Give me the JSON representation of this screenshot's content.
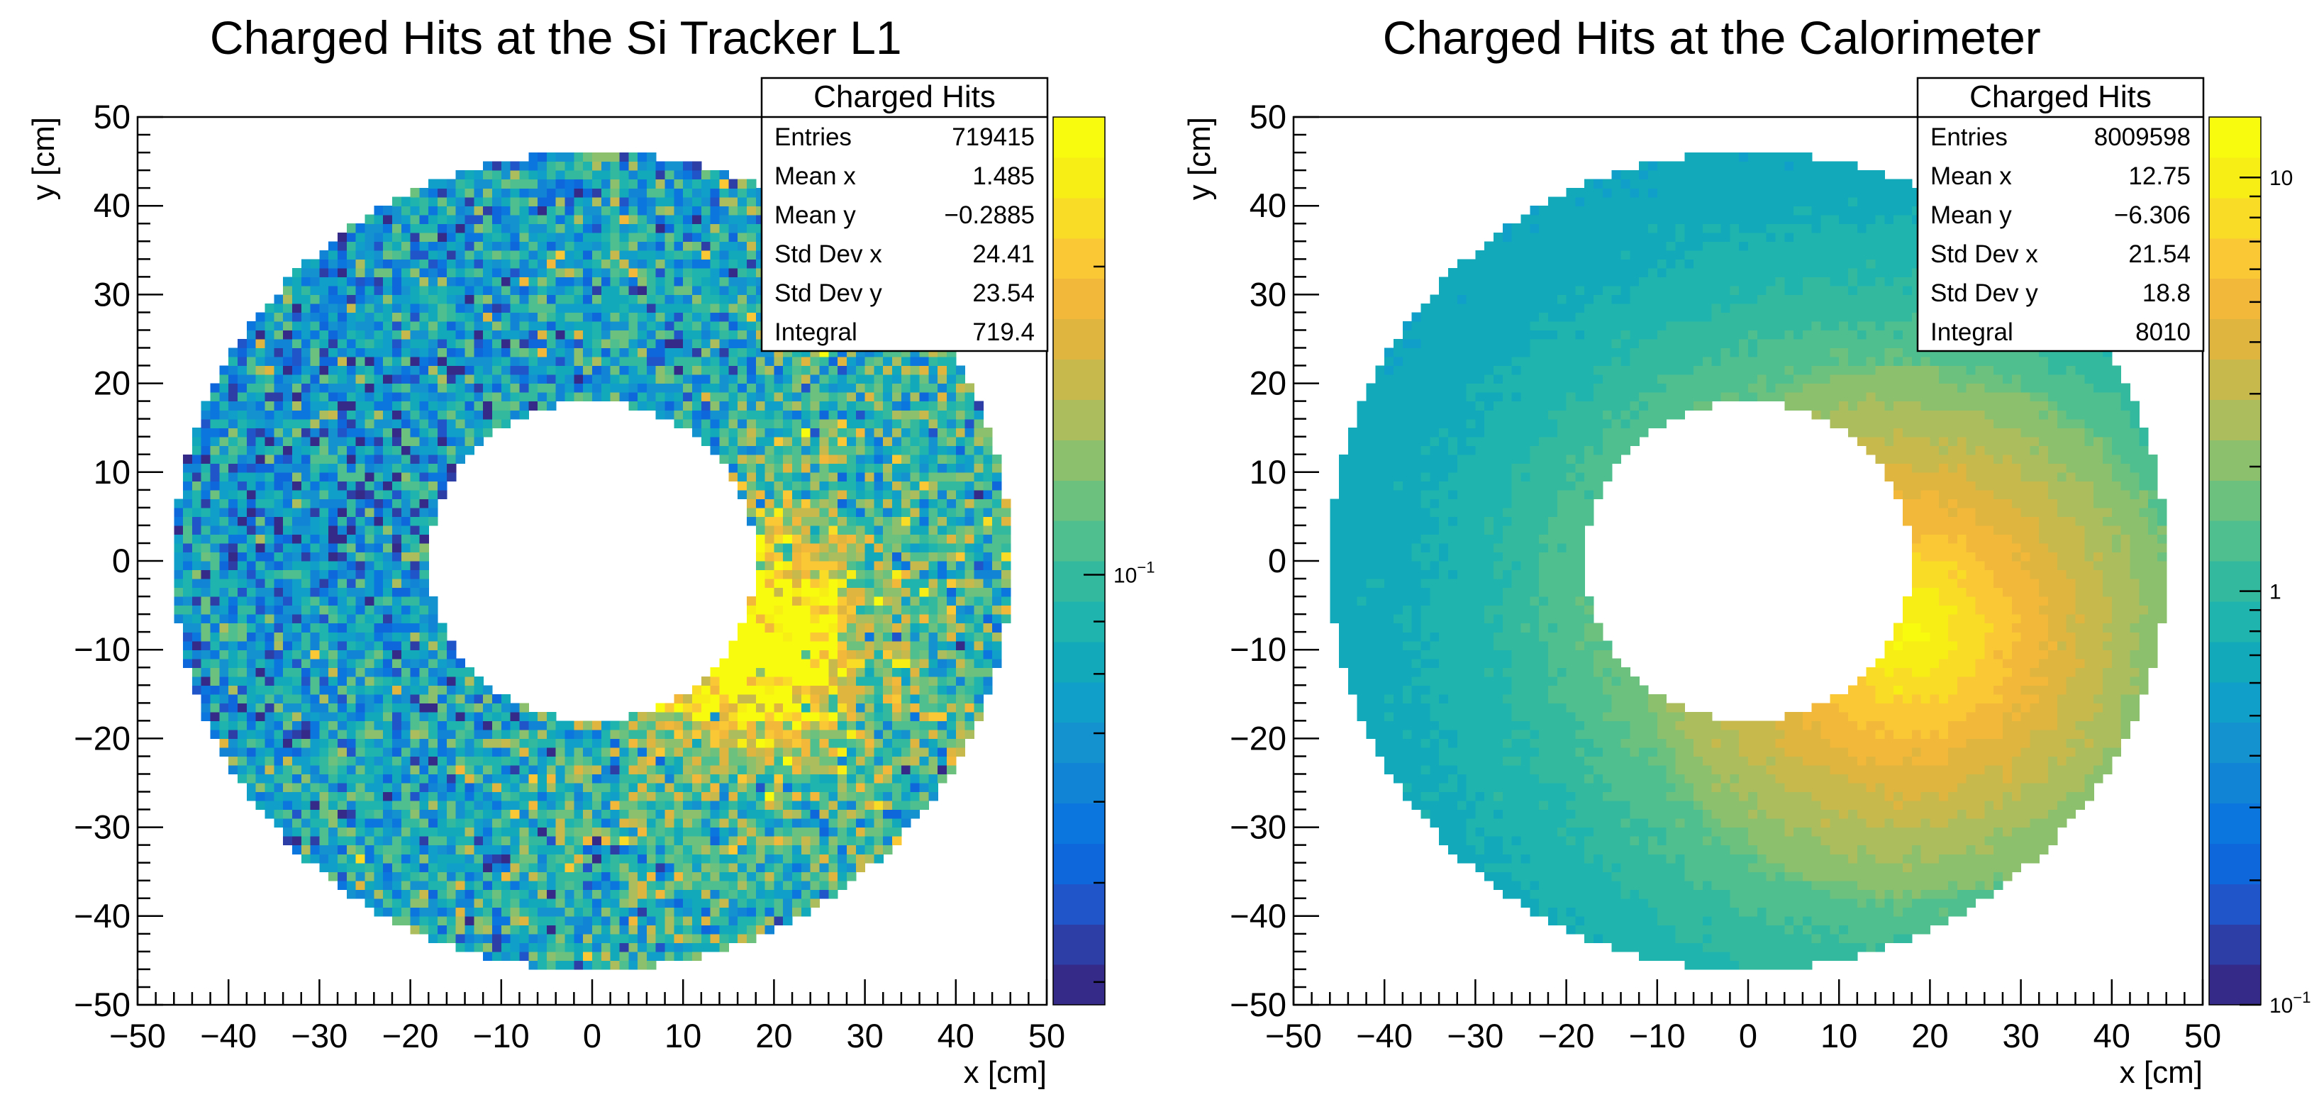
{
  "chart_data": [
    {
      "type": "heatmap",
      "title": "Charged Hits at the Si Tracker L1",
      "xlabel": "x [cm]",
      "ylabel": "y [cm]",
      "xlim": [
        -50,
        50
      ],
      "ylim": [
        -50,
        50
      ],
      "x_ticks": [
        "−50",
        "−40",
        "−30",
        "−20",
        "−10",
        "0",
        "10",
        "20",
        "30",
        "40",
        "50"
      ],
      "y_ticks": [
        "−50",
        "−40",
        "−30",
        "−20",
        "−10",
        "0",
        "10",
        "20",
        "30",
        "40",
        "50"
      ],
      "color_scale": "log",
      "color_ticks": [
        {
          "label": "10",
          "exp": "−1",
          "value": 0.1
        }
      ],
      "zlim": [
        0.038,
        0.28
      ],
      "distribution": {
        "inner_radius_cm": 18,
        "outer_radius_cm": 46,
        "hotspot_x_cm": 18,
        "hotspot_y_cm": -9,
        "hotspot_peak": 0.26,
        "hotspot_width_cm": 7,
        "background_level": 0.085,
        "noise": 0.35
      },
      "stats": {
        "name": "Charged Hits",
        "rows": [
          {
            "label": "Entries",
            "value": "719415"
          },
          {
            "label": "Mean x",
            "value": "1.485"
          },
          {
            "label": "Mean y",
            "value": "−0.2885"
          },
          {
            "label": "Std Dev x",
            "value": "24.41"
          },
          {
            "label": "Std Dev y",
            "value": "23.54"
          },
          {
            "label": "Integral",
            "value": "719.4"
          }
        ]
      }
    },
    {
      "type": "heatmap",
      "title": "Charged Hits at the Calorimeter",
      "xlabel": "x [cm]",
      "ylabel": "y [cm]",
      "xlim": [
        -50,
        50
      ],
      "ylim": [
        -50,
        50
      ],
      "x_ticks": [
        "−50",
        "−40",
        "−30",
        "−20",
        "−10",
        "0",
        "10",
        "20",
        "30",
        "40",
        "50"
      ],
      "y_ticks": [
        "−50",
        "−40",
        "−30",
        "−20",
        "−10",
        "0",
        "10",
        "20",
        "30",
        "40",
        "50"
      ],
      "color_scale": "log",
      "color_ticks": [
        {
          "label": "10",
          "exp": "−1",
          "value": 0.1
        },
        {
          "label": "1",
          "exp": "",
          "value": 1
        },
        {
          "label": "10",
          "exp": "",
          "value": 10
        }
      ],
      "zlim": [
        0.1,
        14
      ],
      "distribution": {
        "inner_radius_cm": 18,
        "outer_radius_cm": 46,
        "hotspot_x_cm": 18,
        "hotspot_y_cm": -8,
        "hotspot_peak": 12,
        "hotspot_width_cm": 14,
        "background_level": 0.45,
        "noise": 0.04
      },
      "stats": {
        "name": "Charged Hits",
        "rows": [
          {
            "label": "Entries",
            "value": "8009598"
          },
          {
            "label": "Mean x",
            "value": "12.75"
          },
          {
            "label": "Mean y",
            "value": "−6.306"
          },
          {
            "label": "Std Dev x",
            "value": "21.54"
          },
          {
            "label": "Std Dev y",
            "value": "18.8"
          },
          {
            "label": "Integral",
            "value": "8010"
          }
        ]
      }
    }
  ]
}
